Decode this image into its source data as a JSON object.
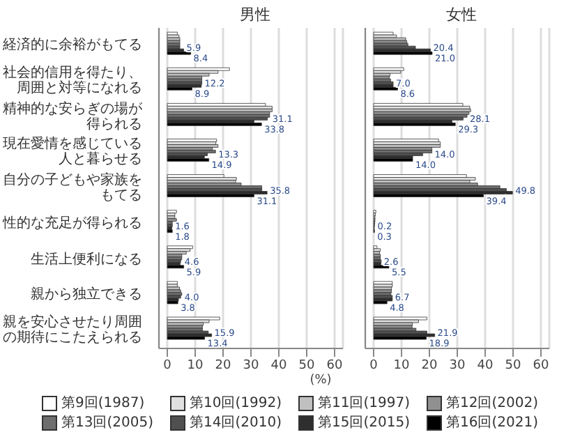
{
  "chart_data": [
    {
      "type": "bar",
      "orientation": "horizontal",
      "title": "男性",
      "legend": "bottom",
      "categories": [
        "経済的に余裕がもてる",
        "社会的信用を得たり、周囲と対等になれる",
        "精神的な安らぎの場が得られる",
        "現在愛情を感じている人と暮らせる",
        "自分の子どもや家族をもてる",
        "性的な充足が得られる",
        "生活上便利になる",
        "親から独立できる",
        "親を安心させたり周囲の期待にこたえられる"
      ],
      "series": [
        {
          "name": "第9回(1987)",
          "color": "#ffffff",
          "values": [
            3.6,
            22.3,
            35.2,
            17.7,
            20.3,
            3.3,
            9.1,
            3.6,
            18.8
          ]
        },
        {
          "name": "第10回(1992)",
          "color": "#e0e0e0",
          "values": [
            4.2,
            18.2,
            37.6,
            17.4,
            24.8,
            2.7,
            8.2,
            3.6,
            15.0
          ]
        },
        {
          "name": "第11回(1997)",
          "color": "#c0c0c0",
          "values": [
            4.5,
            15.0,
            37.6,
            18.2,
            24.5,
            2.7,
            6.8,
            4.4,
            12.9
          ]
        },
        {
          "name": "第12回(2002)",
          "color": "#909090",
          "values": [
            4.5,
            12.4,
            36.7,
            16.2,
            26.5,
            3.3,
            5.2,
            4.8,
            12.6
          ]
        },
        {
          "name": "第13回(2005)",
          "color": "#6e6e6e",
          "values": [
            4.5,
            12.4,
            36.7,
            17.3,
            33.9,
            1.8,
            5.2,
            5.2,
            12.6
          ]
        },
        {
          "name": "第14回(2010)",
          "color": "#505050",
          "values": [
            4.5,
            12.4,
            35.9,
            14.4,
            33.9,
            1.8,
            4.8,
            4.8,
            14.7
          ]
        },
        {
          "name": "第15回(2015)",
          "color": "#2e2e2e",
          "values": [
            5.9,
            12.2,
            31.1,
            13.3,
            35.8,
            1.6,
            4.6,
            4.0,
            15.9
          ],
          "value_labels": [
            "5.9",
            "12.2",
            "31.1",
            "13.3",
            "35.8",
            "1.6",
            "4.6",
            "4.0",
            "15.9"
          ]
        },
        {
          "name": "第16回(2021)",
          "color": "#000000",
          "values": [
            8.4,
            8.9,
            33.8,
            14.9,
            31.1,
            1.8,
            5.9,
            3.8,
            13.4
          ],
          "value_labels": [
            "8.4",
            "8.9",
            "33.8",
            "14.9",
            "31.1",
            "1.8",
            "5.9",
            "3.8",
            "13.4"
          ]
        }
      ],
      "xlim": [
        -3,
        63
      ],
      "xticks": [
        0,
        10,
        20,
        30,
        40,
        50,
        60
      ],
      "grid": "x"
    },
    {
      "type": "bar",
      "orientation": "horizontal",
      "title": "女性",
      "xlabel": "(%)",
      "categories": [
        null,
        null,
        null,
        null,
        null,
        null,
        null,
        null,
        null
      ],
      "series": [
        {
          "color": "#ffffff",
          "values": [
            7.0,
            10.8,
            32.0,
            23.3,
            33.3,
            0.8,
            1.2,
            6.7,
            19.1
          ]
        },
        {
          "color": "#e0e0e0",
          "values": [
            8.2,
            9.7,
            34.5,
            23.9,
            36.5,
            0.6,
            2.4,
            6.7,
            16.1
          ]
        },
        {
          "color": "#c0c0c0",
          "values": [
            11.5,
            5.9,
            34.8,
            23.9,
            34.5,
            0.5,
            2.1,
            6.4,
            13.9
          ]
        },
        {
          "color": "#909090",
          "values": [
            11.9,
            5.6,
            34.2,
            20.9,
            37.3,
            0.5,
            2.4,
            6.4,
            13.8
          ]
        },
        {
          "color": "#6e6e6e",
          "values": [
            12.3,
            6.1,
            33.5,
            20.9,
            45.3,
            0.4,
            2.4,
            6.2,
            15.2
          ]
        },
        {
          "color": "#505050",
          "values": [
            15.0,
            7.0,
            32.1,
            17.6,
            47.6,
            0.3,
            2.7,
            6.7,
            19.1
          ]
        },
        {
          "color": "#2e2e2e",
          "values": [
            20.4,
            7.0,
            28.1,
            14.0,
            49.8,
            0.2,
            2.6,
            6.7,
            21.9
          ],
          "value_labels": [
            "20.4",
            "7.0",
            "28.1",
            "14.0",
            "49.8",
            "0.2",
            "2.6",
            "6.7",
            "21.9"
          ]
        },
        {
          "color": "#000000",
          "values": [
            21.0,
            8.6,
            29.3,
            14.0,
            39.4,
            0.3,
            5.5,
            4.8,
            18.9
          ],
          "value_labels": [
            "21.0",
            "8.6",
            "29.3",
            "14.0",
            "39.4",
            "0.3",
            "5.5",
            "4.8",
            "18.9"
          ]
        }
      ],
      "xlim": [
        -3,
        63
      ],
      "xticks": [
        0,
        10,
        20,
        30,
        40,
        50,
        60
      ],
      "grid": "x",
      "tick_labels": "x"
    }
  ]
}
